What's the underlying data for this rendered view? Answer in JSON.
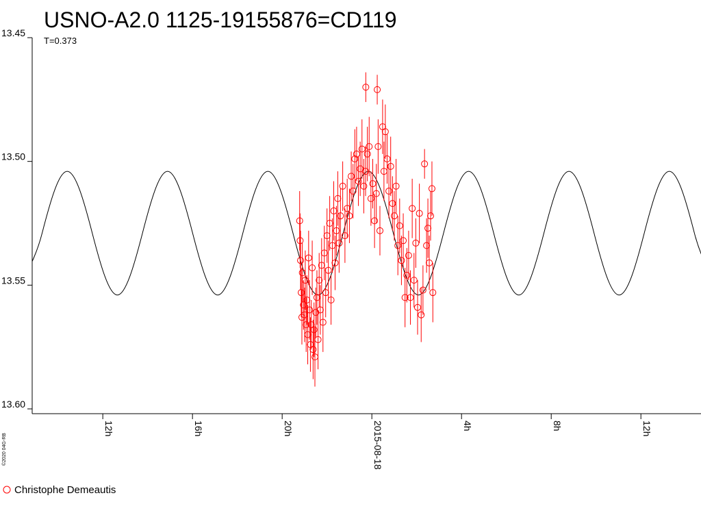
{
  "chart_data": {
    "type": "scatter",
    "title": "USNO-A2.0 1125-19155876=CD119",
    "subtitle": "T=0.373",
    "credit": "©2020 04G-RB",
    "xlim": [
      8.85,
      38.65
    ],
    "xticks": [
      {
        "value": 12,
        "label": "12h"
      },
      {
        "value": 16,
        "label": "16h"
      },
      {
        "value": 20,
        "label": "20h"
      },
      {
        "value": 24,
        "label": "2015-08-18"
      },
      {
        "value": 28,
        "label": "4h"
      },
      {
        "value": 32,
        "label": "8h"
      },
      {
        "value": 36,
        "label": "12h"
      }
    ],
    "ylim": [
      13.45,
      13.6
    ],
    "y_reversed": true,
    "yticks": [
      13.45,
      {
        "value": 13.5,
        "label": "13.50"
      },
      13.55,
      {
        "value": 13.6,
        "label": "13.60"
      }
    ],
    "series": [
      {
        "mode": "line",
        "color": "#000000",
        "x": [
          8.174,
          9.293,
          10.412,
          11.531,
          12.65,
          13.769,
          14.888,
          16.007,
          17.126,
          18.245,
          19.364,
          20.483,
          21.602,
          22.721,
          23.84,
          24.959,
          26.078,
          27.197,
          28.316,
          29.435,
          30.554,
          31.673,
          32.792,
          33.911,
          35.03,
          36.149,
          37.268,
          38.387,
          39.506
        ],
        "values": [
          13.554,
          13.529,
          13.504,
          13.529,
          13.554,
          13.529,
          13.504,
          13.529,
          13.554,
          13.529,
          13.504,
          13.529,
          13.554,
          13.529,
          13.504,
          13.529,
          13.554,
          13.529,
          13.504,
          13.529,
          13.554,
          13.529,
          13.504,
          13.529,
          13.554,
          13.529,
          13.504,
          13.529,
          13.554
        ]
      },
      {
        "mode": "markers",
        "name": "Christophe Demeautis",
        "color": "#ff0000",
        "x": [
          20.78,
          20.8,
          20.82,
          20.85,
          20.88,
          20.9,
          20.95,
          21.0,
          21.03,
          21.07,
          21.1,
          21.14,
          21.18,
          21.22,
          21.26,
          21.3,
          21.34,
          21.38,
          21.42,
          21.46,
          21.5,
          21.55,
          21.6,
          21.65,
          21.7,
          21.76,
          21.82,
          21.88,
          21.94,
          22.0,
          22.06,
          22.12,
          22.18,
          22.24,
          22.3,
          22.36,
          22.42,
          22.48,
          22.54,
          22.6,
          22.7,
          22.8,
          22.9,
          23.0,
          23.08,
          23.16,
          23.24,
          23.32,
          23.4,
          23.48,
          23.56,
          23.64,
          23.72,
          23.8,
          23.88,
          23.96,
          23.73,
          24.04,
          24.12,
          24.2,
          24.28,
          24.36,
          24.24,
          24.48,
          24.54,
          24.6,
          24.68,
          24.76,
          24.84,
          24.92,
          25.0,
          25.08,
          25.16,
          25.24,
          25.32,
          25.4,
          25.48,
          25.56,
          25.64,
          25.72,
          25.8,
          25.88,
          25.96,
          26.04,
          26.12,
          26.2,
          26.28,
          26.35,
          26.44,
          26.5,
          26.56,
          26.62,
          26.68,
          26.72
        ],
        "values": [
          13.524,
          13.532,
          13.54,
          13.553,
          13.563,
          13.545,
          13.558,
          13.562,
          13.548,
          13.566,
          13.556,
          13.57,
          13.539,
          13.56,
          13.574,
          13.566,
          13.543,
          13.576,
          13.568,
          13.579,
          13.561,
          13.555,
          13.572,
          13.548,
          13.56,
          13.542,
          13.565,
          13.537,
          13.553,
          13.53,
          13.544,
          13.525,
          13.556,
          13.534,
          13.52,
          13.541,
          13.528,
          13.515,
          13.533,
          13.522,
          13.51,
          13.53,
          13.519,
          13.522,
          13.506,
          13.512,
          13.499,
          13.497,
          13.508,
          13.503,
          13.495,
          13.51,
          13.504,
          13.497,
          13.494,
          13.515,
          13.47,
          13.509,
          13.524,
          13.513,
          13.494,
          13.528,
          13.471,
          13.486,
          13.504,
          13.488,
          13.499,
          13.512,
          13.502,
          13.517,
          13.522,
          13.51,
          13.534,
          13.526,
          13.54,
          13.532,
          13.555,
          13.546,
          13.538,
          13.555,
          13.519,
          13.548,
          13.533,
          13.559,
          13.521,
          13.562,
          13.552,
          13.501,
          13.534,
          13.527,
          13.541,
          13.522,
          13.511,
          13.553
        ],
        "errors": [
          0.012,
          0.011,
          0.012,
          0.01,
          0.011,
          0.012,
          0.01,
          0.011,
          0.012,
          0.011,
          0.01,
          0.012,
          0.011,
          0.012,
          0.011,
          0.01,
          0.011,
          0.012,
          0.011,
          0.012,
          0.01,
          0.011,
          0.012,
          0.011,
          0.01,
          0.011,
          0.012,
          0.011,
          0.01,
          0.011,
          0.012,
          0.011,
          0.01,
          0.011,
          0.012,
          0.011,
          0.01,
          0.011,
          0.012,
          0.011,
          0.01,
          0.011,
          0.012,
          0.011,
          0.01,
          0.011,
          0.012,
          0.011,
          0.01,
          0.011,
          0.012,
          0.011,
          0.01,
          0.011,
          0.012,
          0.011,
          0.006,
          0.01,
          0.011,
          0.012,
          0.011,
          0.01,
          0.006,
          0.011,
          0.012,
          0.011,
          0.01,
          0.011,
          0.012,
          0.011,
          0.01,
          0.011,
          0.012,
          0.011,
          0.01,
          0.011,
          0.012,
          0.011,
          0.01,
          0.011,
          0.012,
          0.011,
          0.01,
          0.011,
          0.012,
          0.011,
          0.01,
          0.006,
          0.011,
          0.012,
          0.011,
          0.01,
          0.011,
          0.012
        ]
      }
    ]
  }
}
